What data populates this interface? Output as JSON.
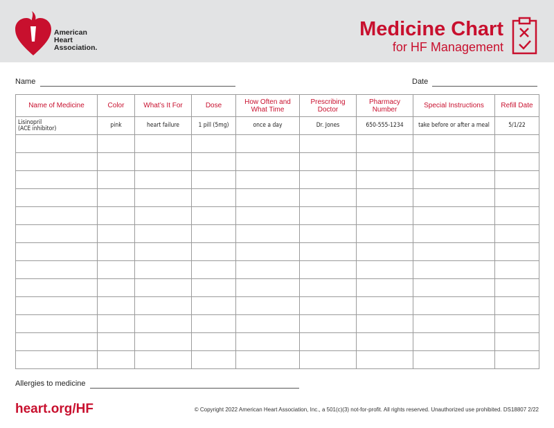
{
  "header": {
    "logo": [
      "American",
      "Heart",
      "Association."
    ],
    "title": "Medicine Chart",
    "subtitle": "for HF Management"
  },
  "fields": {
    "name": "Name",
    "date": "Date",
    "allergies": "Allergies to medicine"
  },
  "table": {
    "columns": [
      "Name of Medicine",
      "Color",
      "What’s It For",
      "Dose",
      "How Often and What Time",
      "Prescribing Doctor",
      "Pharmacy Number",
      "Special Instructions",
      "Refill Date"
    ],
    "rows": [
      [
        "Lisinopril\n(ACE inhibitor)",
        "pink",
        "heart failure",
        "1 pill (5mg)",
        "once a day",
        "Dr. Jones",
        "650-555-1234",
        "take before or after a meal",
        "5/1/22"
      ]
    ]
  },
  "footer": {
    "link": "heart.org/HF",
    "copyright": "© Copyright 2022 American Heart Association, Inc., a 501(c)(3) not-for-profit. All rights reserved. Unauthorized use prohibited.  DS18807  2/22"
  }
}
